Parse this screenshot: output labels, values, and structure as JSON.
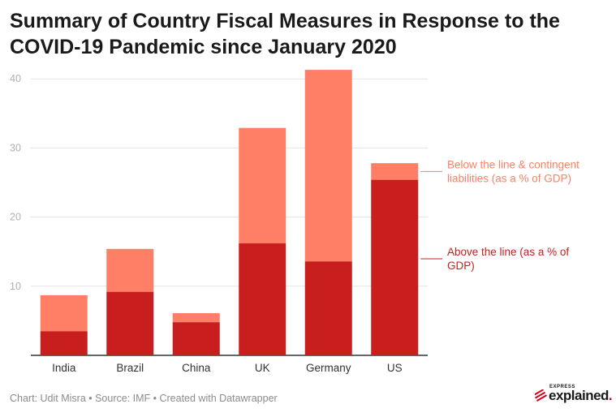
{
  "title": "Summary of Country Fiscal Measures in Response to the COVID-19 Pandemic since January 2020",
  "footer": "Chart: Udit Misra • Source: IMF • Created with Datawrapper",
  "logo": {
    "top": "EXPRESS",
    "main": "explained",
    "dot": "."
  },
  "colors": {
    "above": "#c81e1e",
    "below": "#fe7f65",
    "grid": "#e3e3e3",
    "axis": "#333333",
    "tick": "#b0b0b0"
  },
  "chart_data": {
    "type": "bar",
    "stacked": true,
    "categories": [
      "India",
      "Brazil",
      "China",
      "UK",
      "Germany",
      "US"
    ],
    "series": [
      {
        "name": "Above the line (as a % of GDP)",
        "values": [
          3.5,
          9.2,
          4.8,
          16.2,
          13.6,
          25.4
        ]
      },
      {
        "name": "Below the line & contingent liabilities (as a % of GDP)",
        "values": [
          5.2,
          6.2,
          1.3,
          16.7,
          27.7,
          2.4
        ]
      }
    ],
    "yticks": [
      10,
      20,
      30,
      40
    ],
    "ylim": [
      0,
      42
    ],
    "legend": "right, inline labels",
    "labels": {
      "below": [
        "Below the line & contingent",
        "liabilities (as a % of GDP)"
      ],
      "above": [
        "Above the line (as a % of",
        "GDP)"
      ]
    }
  }
}
